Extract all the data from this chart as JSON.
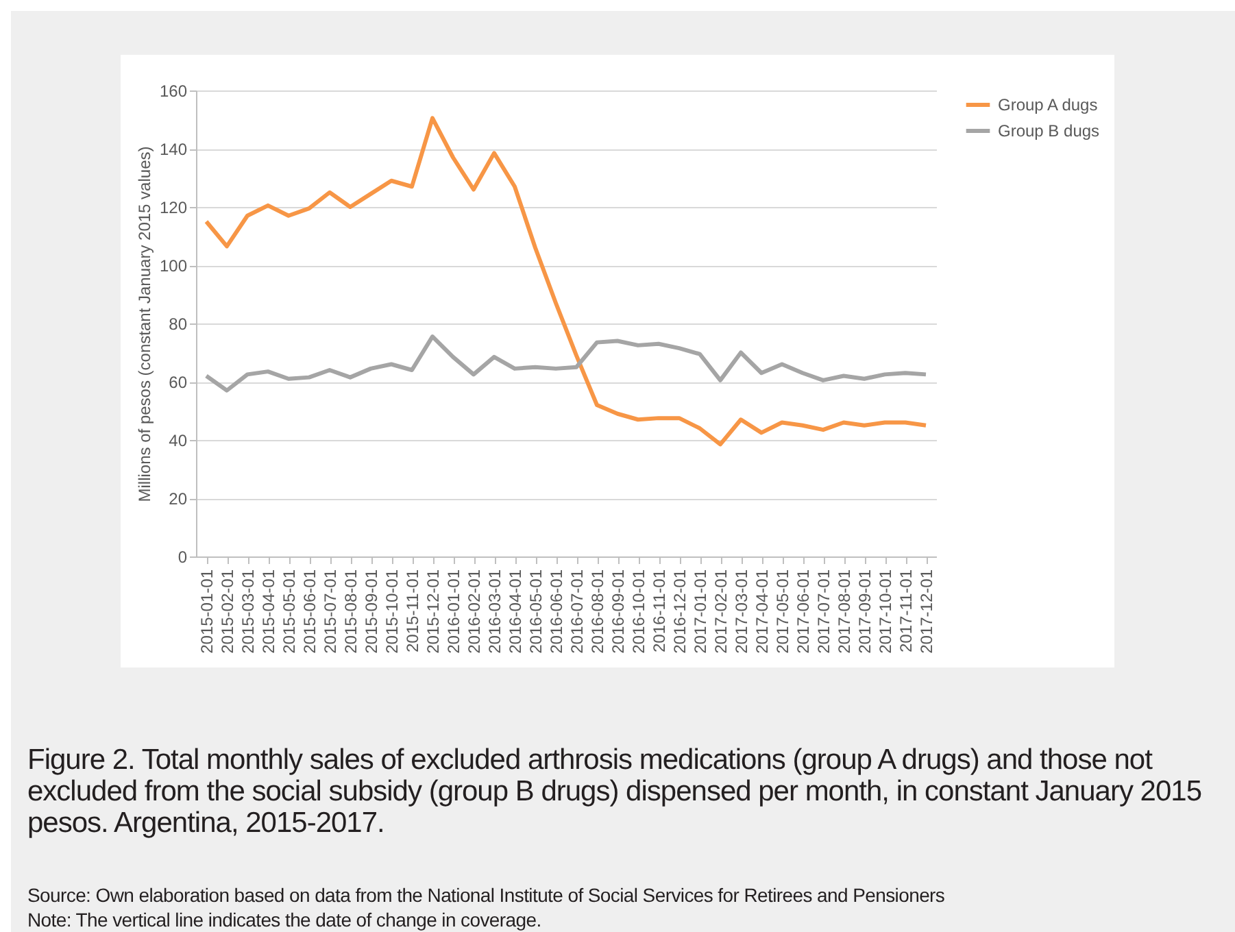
{
  "chart_data": {
    "type": "line",
    "title": "Figure 2. Total monthly sales of excluded arthrosis medications (group A drugs) and those not excluded from the social subsidy (group B drugs) dispensed per month, in constant January 2015 pesos. Argentina, 2015-2017.",
    "ylabel": "Millions of pesos (constant January 2015 values)",
    "annotations": [
      "Source: Own elaboration based on data from the National Institute of Social Services for Retirees and Pensioners",
      "Note: The vertical line indicates the date of change in coverage."
    ],
    "categories": [
      "2015-01-01",
      "2015-02-01",
      "2015-03-01",
      "2015-04-01",
      "2015-05-01",
      "2015-06-01",
      "2015-07-01",
      "2015-08-01",
      "2015-09-01",
      "2015-10-01",
      "2015-11-01",
      "2015-12-01",
      "2016-01-01",
      "2016-02-01",
      "2016-03-01",
      "2016-04-01",
      "2016-05-01",
      "2016-06-01",
      "2016-07-01",
      "2016-08-01",
      "2016-09-01",
      "2016-10-01",
      "2016-11-01",
      "2016-12-01",
      "2017-01-01",
      "2017-02-01",
      "2017-03-01",
      "2017-04-01",
      "2017-05-01",
      "2017-06-01",
      "2017-07-01",
      "2017-08-01",
      "2017-09-01",
      "2017-10-01",
      "2017-11-01",
      "2017-12-01"
    ],
    "series": [
      {
        "name": "Group A dugs",
        "color": "#f79646",
        "values": [
          115,
          106.5,
          117,
          120.5,
          117,
          119.5,
          125,
          120,
          124.5,
          129,
          127,
          150.5,
          137,
          126,
          138.5,
          127,
          106,
          87,
          69,
          52,
          49,
          47,
          47.5,
          47.5,
          44,
          38.5,
          47,
          42.5,
          46,
          45,
          43.5,
          46,
          45,
          46,
          46,
          45
        ]
      },
      {
        "name": "Group B dugs",
        "color": "#a5a5a5",
        "values": [
          62,
          57,
          62.5,
          63.5,
          61,
          61.5,
          64,
          61.5,
          64.5,
          66,
          64,
          75.5,
          68.5,
          62.5,
          68.5,
          64.5,
          65,
          64.5,
          65,
          73.5,
          74,
          72.5,
          73,
          71.5,
          69.5,
          60.5,
          70,
          63,
          66,
          63,
          60.5,
          62,
          61,
          62.5,
          63,
          62.5
        ]
      }
    ],
    "ylim": [
      0,
      160
    ],
    "yticks": [
      0,
      20,
      40,
      60,
      80,
      100,
      120,
      140,
      160
    ],
    "grid": "y",
    "legend": "right",
    "marker": "none",
    "line_style": "solid"
  }
}
